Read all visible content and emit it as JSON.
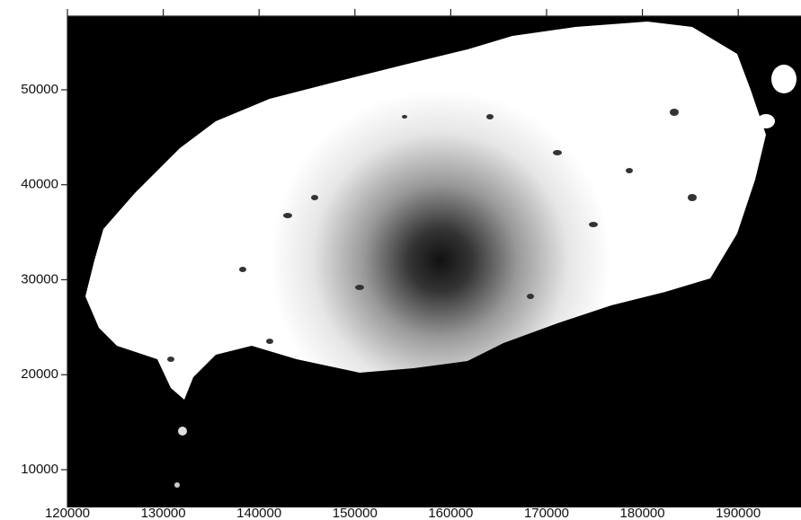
{
  "chart_data": {
    "type": "image",
    "xlim": [
      120000,
      196550
    ],
    "xticks": [
      120000,
      130000,
      140000,
      150000,
      160000,
      170000,
      180000,
      190000
    ],
    "ylim": [
      6030,
      57750
    ],
    "yticks": [
      10000,
      20000,
      30000,
      40000,
      50000
    ]
  }
}
